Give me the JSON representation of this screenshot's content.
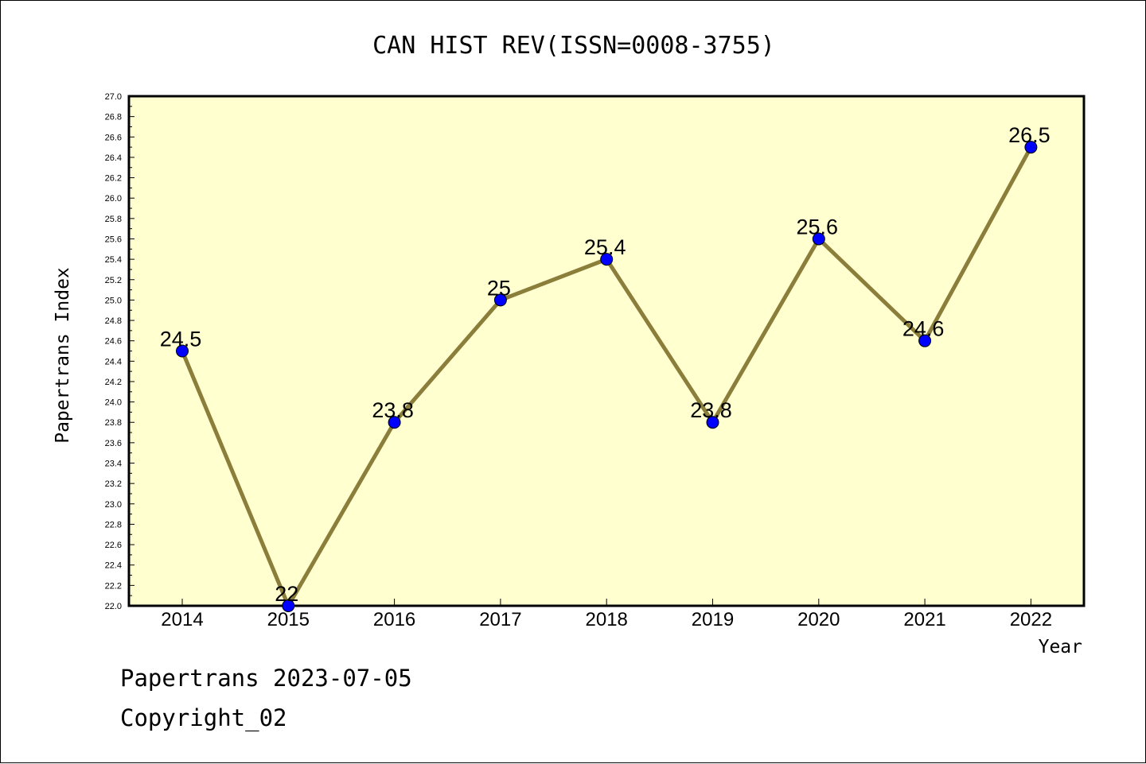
{
  "chart_data": {
    "type": "line",
    "title": "CAN HIST REV(ISSN=0008-3755)",
    "xlabel": "Year",
    "ylabel": "Papertrans Index",
    "categories": [
      "2014",
      "2015",
      "2016",
      "2017",
      "2018",
      "2019",
      "2020",
      "2021",
      "2022"
    ],
    "series": [
      {
        "values": [
          24.5,
          22,
          23.8,
          25,
          25.4,
          23.8,
          25.6,
          24.6,
          26.5
        ],
        "labels": [
          "24.5",
          "22",
          "23.8",
          "25",
          "25.4",
          "23.8",
          "25.6",
          "24.6",
          "26.5"
        ]
      }
    ],
    "ylim": [
      22.0,
      27.0
    ],
    "yticks": [
      "22.0",
      "22.2",
      "22.4",
      "22.6",
      "22.8",
      "23.0",
      "23.2",
      "23.4",
      "23.6",
      "23.8",
      "24.0",
      "24.2",
      "24.4",
      "24.6",
      "24.8",
      "25.0",
      "25.2",
      "25.4",
      "25.6",
      "25.8",
      "26.0",
      "26.2",
      "26.4",
      "26.6",
      "26.8",
      "27.0"
    ],
    "grid": false,
    "colors": {
      "plot_background": "#ffffd0",
      "line": "#8b7d3a",
      "marker": "#0000ff"
    }
  },
  "footer": {
    "line1": "Papertrans 2023-07-05",
    "line2": "Copyright_02"
  }
}
